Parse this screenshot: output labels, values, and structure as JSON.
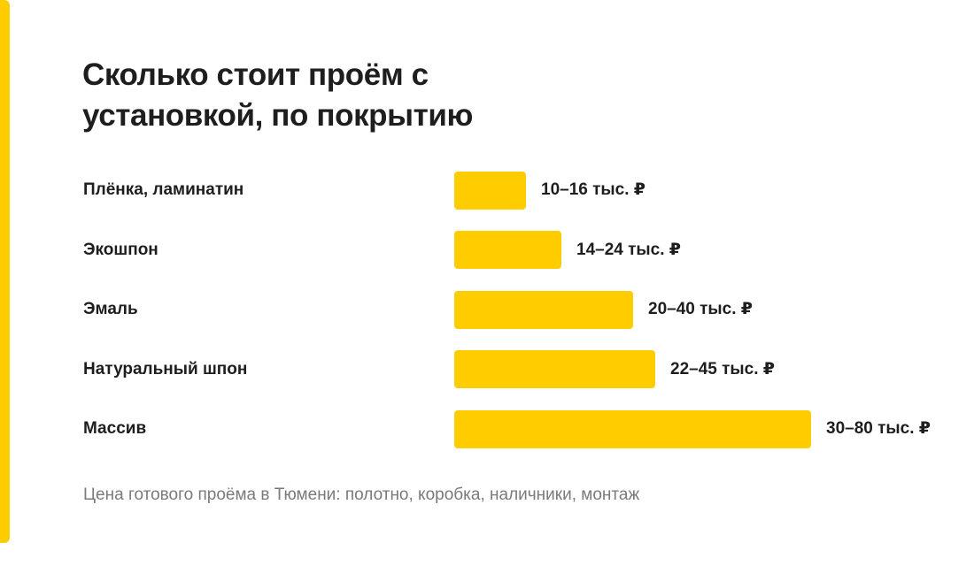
{
  "chart_data": {
    "type": "bar",
    "orientation": "horizontal",
    "title": "Сколько стоит проём с\nустановкой, по покрытию",
    "categories": [
      "Плёнка, ламинатин",
      "Экошпон",
      "Эмаль",
      "Натуральный шпон",
      "Массив"
    ],
    "value_labels": [
      "10–16 тыс. ₽",
      "14–24 тыс. ₽",
      "20–40 тыс. ₽",
      "22–45 тыс. ₽",
      "30–80 тыс. ₽"
    ],
    "series": [
      {
        "low": [
          10,
          14,
          20,
          22,
          30
        ],
        "high": [
          16,
          24,
          40,
          45,
          80
        ]
      }
    ],
    "bar_values": [
      16,
      24,
      40,
      45,
      80
    ],
    "unit": "тыс. ₽",
    "xlim": [
      0,
      80
    ],
    "grid": false,
    "footnote": "Цена готового проёма в Тюмени: полотно, коробка, наличники, монтаж"
  },
  "colors": {
    "accent": "#FFCC00",
    "text": "#1e1e1e",
    "muted": "#7a7a7a"
  }
}
